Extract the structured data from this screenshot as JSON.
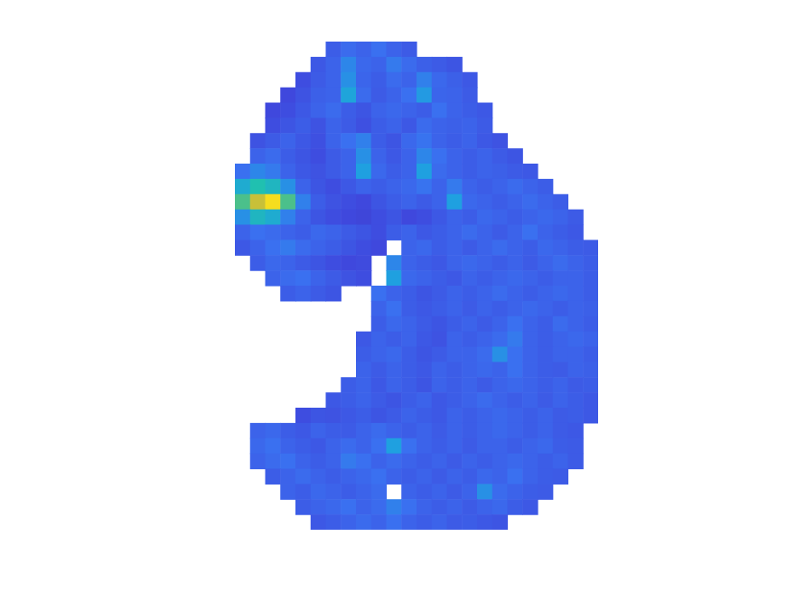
{
  "chart_data": {
    "type": "heatmap",
    "tick_labels": false,
    "zlim": [
      0,
      1
    ],
    "cells": [
      [
        null,
        null,
        null,
        null,
        null,
        null,
        0.28,
        0.33,
        0.3,
        0.35,
        0.3,
        0.27,
        null,
        null,
        null,
        null,
        null,
        null,
        null,
        null,
        null,
        null,
        null,
        null
      ],
      [
        null,
        null,
        null,
        null,
        null,
        0.26,
        0.3,
        0.42,
        0.32,
        0.3,
        0.38,
        0.33,
        0.29,
        0.27,
        0.25,
        null,
        null,
        null,
        null,
        null,
        null,
        null,
        null,
        null
      ],
      [
        null,
        null,
        null,
        null,
        0.22,
        0.27,
        0.3,
        0.45,
        0.31,
        0.28,
        0.33,
        0.3,
        0.4,
        0.32,
        0.29,
        0.26,
        null,
        null,
        null,
        null,
        null,
        null,
        null,
        null
      ],
      [
        null,
        null,
        null,
        0.2,
        0.24,
        0.29,
        0.3,
        0.52,
        0.33,
        0.27,
        0.3,
        0.35,
        0.48,
        0.31,
        0.3,
        0.27,
        null,
        null,
        null,
        null,
        null,
        null,
        null,
        null
      ],
      [
        null,
        null,
        0.2,
        0.22,
        0.26,
        0.3,
        0.33,
        0.28,
        0.25,
        0.3,
        0.32,
        0.3,
        0.28,
        0.35,
        0.3,
        0.28,
        0.26,
        null,
        null,
        null,
        null,
        null,
        null,
        null
      ],
      [
        null,
        null,
        0.22,
        0.25,
        0.28,
        0.24,
        0.3,
        0.27,
        0.23,
        0.28,
        0.3,
        0.26,
        0.33,
        0.3,
        0.29,
        0.3,
        0.27,
        null,
        null,
        null,
        null,
        null,
        null,
        null
      ],
      [
        null,
        0.24,
        0.27,
        0.3,
        0.26,
        0.23,
        0.3,
        0.35,
        0.4,
        0.28,
        0.25,
        0.32,
        0.36,
        0.3,
        0.28,
        0.3,
        0.26,
        0.24,
        null,
        null,
        null,
        null,
        null,
        null
      ],
      [
        null,
        0.3,
        0.33,
        0.28,
        0.25,
        0.22,
        0.27,
        0.3,
        0.45,
        0.3,
        0.26,
        0.3,
        0.42,
        0.35,
        0.3,
        0.28,
        0.3,
        0.27,
        0.25,
        null,
        null,
        null,
        null,
        null
      ],
      [
        0.35,
        0.42,
        0.38,
        0.3,
        0.26,
        0.24,
        0.27,
        0.3,
        0.5,
        0.32,
        0.28,
        0.3,
        0.5,
        0.33,
        0.3,
        0.28,
        0.3,
        0.29,
        0.27,
        0.26,
        null,
        null,
        null,
        null
      ],
      [
        0.55,
        0.65,
        0.6,
        0.45,
        0.3,
        0.25,
        0.22,
        0.26,
        0.3,
        0.28,
        0.3,
        0.32,
        0.36,
        0.3,
        0.38,
        0.3,
        0.28,
        0.3,
        0.33,
        0.3,
        0.28,
        null,
        null,
        null
      ],
      [
        0.7,
        0.85,
        0.95,
        0.7,
        0.4,
        0.28,
        0.24,
        0.22,
        0.2,
        0.25,
        0.28,
        0.3,
        0.27,
        0.3,
        0.5,
        0.32,
        0.3,
        0.28,
        0.3,
        0.33,
        0.3,
        0.28,
        null,
        null
      ],
      [
        0.45,
        0.6,
        0.55,
        0.4,
        0.3,
        0.25,
        0.22,
        0.2,
        0.18,
        0.22,
        0.25,
        0.2,
        0.22,
        0.26,
        0.3,
        0.28,
        0.32,
        0.3,
        0.28,
        0.3,
        0.32,
        0.3,
        0.27,
        null
      ],
      [
        0.3,
        0.35,
        0.33,
        0.3,
        0.28,
        0.32,
        0.3,
        0.27,
        0.25,
        0.22,
        0.28,
        0.3,
        0.26,
        0.28,
        0.3,
        0.33,
        0.3,
        0.27,
        0.3,
        0.35,
        0.3,
        0.28,
        0.26,
        null
      ],
      [
        0.26,
        0.3,
        0.35,
        0.38,
        0.33,
        0.3,
        0.28,
        0.25,
        0.22,
        0.2,
        null,
        0.3,
        0.32,
        0.28,
        0.3,
        0.27,
        0.3,
        0.33,
        0.3,
        0.28,
        0.32,
        0.3,
        0.28,
        0.27
      ],
      [
        null,
        0.28,
        0.32,
        0.3,
        0.27,
        0.25,
        0.22,
        0.2,
        0.21,
        null,
        0.42,
        0.3,
        0.28,
        0.26,
        0.3,
        0.32,
        0.3,
        0.28,
        0.3,
        0.27,
        0.3,
        0.33,
        0.3,
        0.28
      ],
      [
        null,
        null,
        0.3,
        0.33,
        0.35,
        0.3,
        0.27,
        0.24,
        0.22,
        null,
        0.5,
        0.32,
        0.3,
        0.28,
        0.26,
        0.3,
        0.28,
        0.3,
        0.32,
        0.3,
        0.28,
        0.3,
        0.3,
        0.28
      ],
      [
        null,
        null,
        null,
        0.28,
        0.3,
        0.27,
        0.25,
        null,
        null,
        0.35,
        0.3,
        0.28,
        0.25,
        0.27,
        0.3,
        0.28,
        0.3,
        0.33,
        0.3,
        0.28,
        0.3,
        0.32,
        0.3,
        0.28
      ],
      [
        null,
        null,
        null,
        null,
        null,
        null,
        null,
        null,
        null,
        0.3,
        0.35,
        0.28,
        0.26,
        0.28,
        0.3,
        0.27,
        0.3,
        0.28,
        0.3,
        0.32,
        0.3,
        0.28,
        0.3,
        0.29
      ],
      [
        null,
        null,
        null,
        null,
        null,
        null,
        null,
        null,
        null,
        0.28,
        0.32,
        0.3,
        0.27,
        0.25,
        0.28,
        0.3,
        0.27,
        0.3,
        0.35,
        0.3,
        0.28,
        0.33,
        0.3,
        0.28
      ],
      [
        null,
        null,
        null,
        null,
        null,
        null,
        null,
        null,
        0.26,
        0.3,
        0.28,
        0.3,
        0.26,
        0.24,
        0.3,
        0.28,
        0.3,
        0.33,
        0.38,
        0.3,
        0.28,
        0.3,
        0.32,
        0.3
      ],
      [
        null,
        null,
        null,
        null,
        null,
        null,
        null,
        null,
        0.28,
        0.3,
        0.32,
        0.28,
        0.25,
        0.27,
        0.3,
        0.3,
        0.33,
        0.45,
        0.35,
        0.3,
        0.28,
        0.3,
        0.3,
        0.28
      ],
      [
        null,
        null,
        null,
        null,
        null,
        null,
        null,
        null,
        0.3,
        0.27,
        0.3,
        0.28,
        0.26,
        0.3,
        0.28,
        0.3,
        0.32,
        0.3,
        0.35,
        0.3,
        0.28,
        0.27,
        0.3,
        0.29
      ],
      [
        null,
        null,
        null,
        null,
        null,
        null,
        null,
        0.28,
        0.3,
        0.26,
        0.3,
        0.28,
        0.25,
        0.3,
        0.28,
        0.3,
        0.27,
        0.3,
        0.32,
        0.3,
        0.28,
        0.3,
        0.27,
        0.28
      ],
      [
        null,
        null,
        null,
        null,
        null,
        null,
        0.26,
        0.28,
        0.3,
        0.27,
        0.25,
        0.28,
        0.3,
        0.26,
        0.28,
        0.3,
        0.33,
        0.3,
        0.28,
        0.3,
        0.27,
        0.3,
        0.28,
        0.26
      ],
      [
        null,
        null,
        null,
        null,
        0.22,
        0.25,
        0.24,
        0.26,
        0.28,
        0.25,
        0.27,
        0.3,
        0.28,
        0.26,
        0.3,
        0.28,
        0.3,
        0.32,
        0.3,
        0.28,
        0.3,
        0.27,
        0.28,
        0.26
      ],
      [
        null,
        0.3,
        0.32,
        0.28,
        0.26,
        0.3,
        0.28,
        0.27,
        0.3,
        0.33,
        0.3,
        0.28,
        0.3,
        0.27,
        0.3,
        0.28,
        0.3,
        0.32,
        0.3,
        0.28,
        0.3,
        0.27,
        0.26,
        null
      ],
      [
        null,
        0.32,
        0.35,
        0.3,
        0.28,
        0.26,
        0.3,
        0.33,
        0.3,
        0.35,
        0.5,
        0.35,
        0.3,
        0.28,
        0.3,
        0.27,
        0.3,
        0.3,
        0.28,
        0.3,
        0.32,
        0.28,
        0.27,
        null
      ],
      [
        null,
        0.3,
        0.33,
        0.35,
        0.3,
        0.28,
        0.3,
        0.38,
        0.35,
        0.3,
        0.33,
        0.3,
        0.28,
        0.3,
        0.27,
        0.3,
        0.28,
        0.3,
        0.32,
        0.3,
        0.28,
        0.3,
        0.27,
        null
      ],
      [
        null,
        null,
        0.28,
        0.3,
        0.33,
        0.3,
        0.28,
        0.3,
        0.32,
        0.35,
        0.3,
        0.28,
        0.3,
        0.27,
        0.3,
        0.28,
        0.32,
        0.3,
        0.35,
        0.3,
        0.28,
        0.27,
        null,
        null
      ],
      [
        null,
        null,
        null,
        0.3,
        0.28,
        0.32,
        0.3,
        0.28,
        0.3,
        0.33,
        null,
        0.3,
        0.28,
        0.3,
        0.27,
        0.3,
        0.45,
        0.33,
        0.3,
        0.28,
        0.27,
        null,
        null,
        null
      ],
      [
        null,
        null,
        null,
        null,
        0.28,
        0.3,
        0.32,
        0.35,
        0.3,
        0.33,
        0.4,
        0.35,
        0.3,
        0.28,
        0.3,
        0.27,
        0.3,
        0.32,
        0.28,
        0.26,
        null,
        null,
        null,
        null
      ],
      [
        null,
        null,
        null,
        null,
        null,
        0.26,
        0.28,
        0.3,
        0.33,
        0.3,
        0.35,
        0.3,
        0.28,
        0.3,
        0.27,
        0.28,
        0.26,
        0.25,
        null,
        null,
        null,
        null,
        null,
        null
      ]
    ]
  }
}
